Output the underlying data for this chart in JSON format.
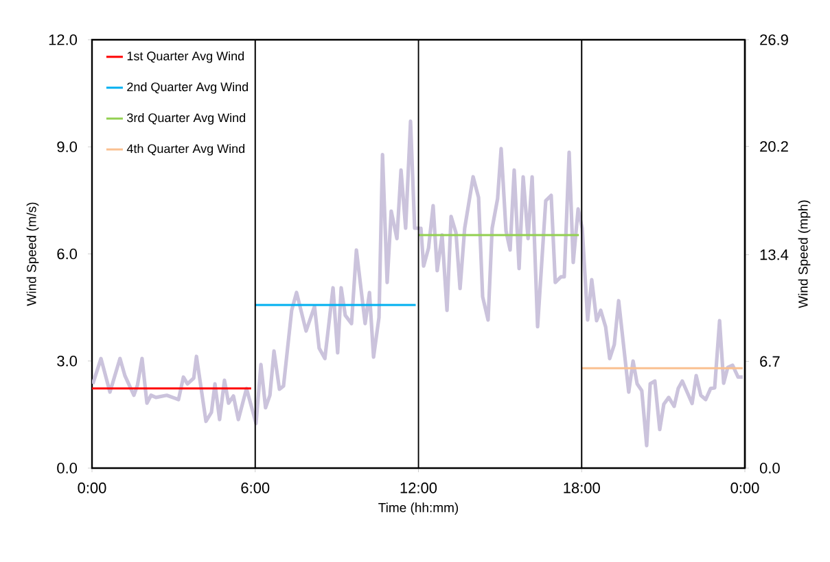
{
  "chart_data": {
    "type": "line",
    "xlabel": "Time (hh:mm)",
    "ylabel": "Wind Speed (m/s)",
    "y2label": "Wind Speed (mph)",
    "xlim": [
      0,
      24
    ],
    "xticks": [
      {
        "value": 0,
        "label": "0:00"
      },
      {
        "value": 6,
        "label": "6:00"
      },
      {
        "value": 12,
        "label": "12:00"
      },
      {
        "value": 18,
        "label": "18:00"
      },
      {
        "value": 24,
        "label": "0:00"
      }
    ],
    "ylim": [
      0,
      12
    ],
    "yticks": [
      {
        "value": 0,
        "label": "0.0"
      },
      {
        "value": 3,
        "label": "3.0"
      },
      {
        "value": 6,
        "label": "6.0"
      },
      {
        "value": 9,
        "label": "9.0"
      },
      {
        "value": 12,
        "label": "12.0"
      }
    ],
    "y2lim": [
      0,
      26.9
    ],
    "y2ticks": [
      {
        "value": 0,
        "label": "0.0"
      },
      {
        "value": 6.7,
        "label": "6.7"
      },
      {
        "value": 13.4,
        "label": "13.4"
      },
      {
        "value": 20.2,
        "label": "20.2"
      },
      {
        "value": 26.9,
        "label": "26.9"
      }
    ],
    "legend": "top left",
    "marker": "none",
    "line_style": "solid",
    "ref_lines": [
      {
        "axis": "x",
        "value": 6,
        "color": "#000000"
      },
      {
        "axis": "x",
        "value": 12,
        "color": "#000000"
      },
      {
        "axis": "x",
        "value": 18,
        "color": "#000000"
      }
    ],
    "series": [
      {
        "color": "#cbc3dc",
        "x": [
          0.03,
          0.33,
          0.66,
          1.03,
          1.21,
          1.54,
          1.67,
          1.84,
          2.02,
          2.17,
          2.35,
          2.75,
          3.18,
          3.36,
          3.51,
          3.74,
          3.84,
          4.19,
          4.39,
          4.52,
          4.69,
          4.87,
          5.02,
          5.2,
          5.38,
          5.68,
          6.03,
          6.21,
          6.38,
          6.54,
          6.69,
          6.89,
          7.04,
          7.34,
          7.52,
          7.87,
          8.18,
          8.35,
          8.56,
          8.86,
          9.03,
          9.16,
          9.31,
          9.54,
          9.72,
          10.04,
          10.2,
          10.35,
          10.55,
          10.68,
          10.85,
          11.0,
          11.21,
          11.36,
          11.53,
          11.71,
          11.86,
          12.09,
          12.19,
          12.37,
          12.54,
          12.69,
          12.87,
          13.05,
          13.2,
          13.38,
          13.53,
          13.7,
          14.01,
          14.21,
          14.36,
          14.56,
          14.71,
          14.91,
          15.04,
          15.22,
          15.37,
          15.52,
          15.7,
          15.85,
          16.03,
          16.18,
          16.38,
          16.68,
          16.88,
          17.03,
          17.24,
          17.36,
          17.54,
          17.69,
          17.87,
          18.02,
          18.22,
          18.37,
          18.55,
          18.7,
          18.88,
          19.03,
          19.2,
          19.36,
          19.73,
          19.89,
          20.04,
          20.21,
          20.39,
          20.52,
          20.69,
          20.87,
          21.02,
          21.2,
          21.4,
          21.55,
          21.7,
          22.06,
          22.21,
          22.38,
          22.56,
          22.74,
          22.89,
          23.07,
          23.22,
          23.37,
          23.55,
          23.75,
          23.92
        ],
        "values": [
          2.36,
          3.07,
          2.13,
          3.07,
          2.59,
          2.04,
          2.32,
          3.07,
          1.82,
          2.04,
          1.98,
          2.04,
          1.92,
          2.55,
          2.36,
          2.52,
          3.13,
          1.31,
          1.56,
          2.36,
          1.36,
          2.46,
          1.82,
          2.02,
          1.36,
          2.23,
          1.25,
          2.9,
          1.69,
          2.04,
          3.28,
          2.21,
          2.3,
          4.42,
          4.92,
          3.84,
          4.53,
          3.36,
          3.07,
          5.05,
          3.23,
          5.05,
          4.28,
          4.05,
          6.11,
          4.05,
          4.92,
          3.11,
          4.22,
          8.78,
          5.2,
          7.2,
          6.43,
          8.35,
          6.72,
          9.72,
          6.72,
          6.72,
          5.66,
          6.16,
          7.35,
          5.53,
          6.53,
          4.42,
          7.05,
          6.59,
          5.03,
          6.72,
          8.16,
          7.58,
          4.8,
          4.15,
          6.72,
          7.55,
          8.95,
          6.64,
          6.11,
          8.35,
          5.59,
          8.16,
          6.43,
          8.16,
          3.96,
          7.49,
          7.64,
          5.2,
          5.36,
          5.36,
          8.85,
          5.76,
          7.26,
          6.72,
          4.15,
          5.28,
          4.13,
          4.42,
          3.96,
          3.07,
          3.46,
          4.69,
          2.13,
          3.0,
          2.36,
          2.17,
          0.63,
          2.36,
          2.44,
          1.08,
          1.79,
          1.98,
          1.73,
          2.23,
          2.44,
          1.81,
          2.59,
          2.04,
          1.92,
          2.23,
          2.25,
          4.13,
          2.38,
          2.82,
          2.88,
          2.55,
          2.55
        ]
      },
      {
        "name": "1st Quarter Avg Wind",
        "color": "#ff0000",
        "x": [
          0,
          5.85
        ],
        "values": [
          2.23,
          2.23
        ]
      },
      {
        "name": "2nd Quarter Avg Wind",
        "color": "#00b0f0",
        "x": [
          6,
          11.9
        ],
        "values": [
          4.57,
          4.57
        ]
      },
      {
        "name": "3rd Quarter Avg Wind",
        "color": "#92d050",
        "x": [
          12,
          17.9
        ],
        "values": [
          6.53,
          6.53
        ]
      },
      {
        "name": "4th Quarter Avg Wind",
        "color": "#fac090",
        "x": [
          18,
          23.92
        ],
        "values": [
          2.8,
          2.8
        ]
      }
    ]
  }
}
